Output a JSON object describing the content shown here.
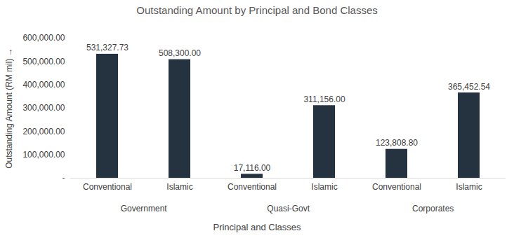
{
  "chart_data": {
    "type": "bar",
    "title": "Outstanding Amount by Principal and Bond Classes",
    "x_label": "Principal and Classes",
    "y_label": "Outstanding Amount (RM mil)",
    "categories": [
      "Conventional",
      "Islamic",
      "Conventional",
      "Islamic",
      "Conventional",
      "Islamic"
    ],
    "category_groups": [
      "Government",
      "Quasi-Govt",
      "Corporates"
    ],
    "values": [
      531327.73,
      508300,
      17116,
      311156,
      123808.8,
      365452.54
    ],
    "value_labels": [
      "531,327.73",
      "508,300.00",
      "17,116.00",
      "311,156.00",
      "123,808.80",
      "365,452.54"
    ],
    "color": "#253341",
    "ylim": [
      0,
      600000
    ],
    "yticks": [
      {
        "value": 0,
        "label": "-"
      },
      {
        "value": 100000,
        "label": "100,000.00"
      },
      {
        "value": 200000,
        "label": "200,000.00"
      },
      {
        "value": 300000,
        "label": "300,000.00"
      },
      {
        "value": 400000,
        "label": "400,000.00"
      },
      {
        "value": 500000,
        "label": "500,000.00"
      },
      {
        "value": 600000,
        "label": "600,000.00"
      }
    ],
    "grid": false,
    "data_labels": true
  }
}
